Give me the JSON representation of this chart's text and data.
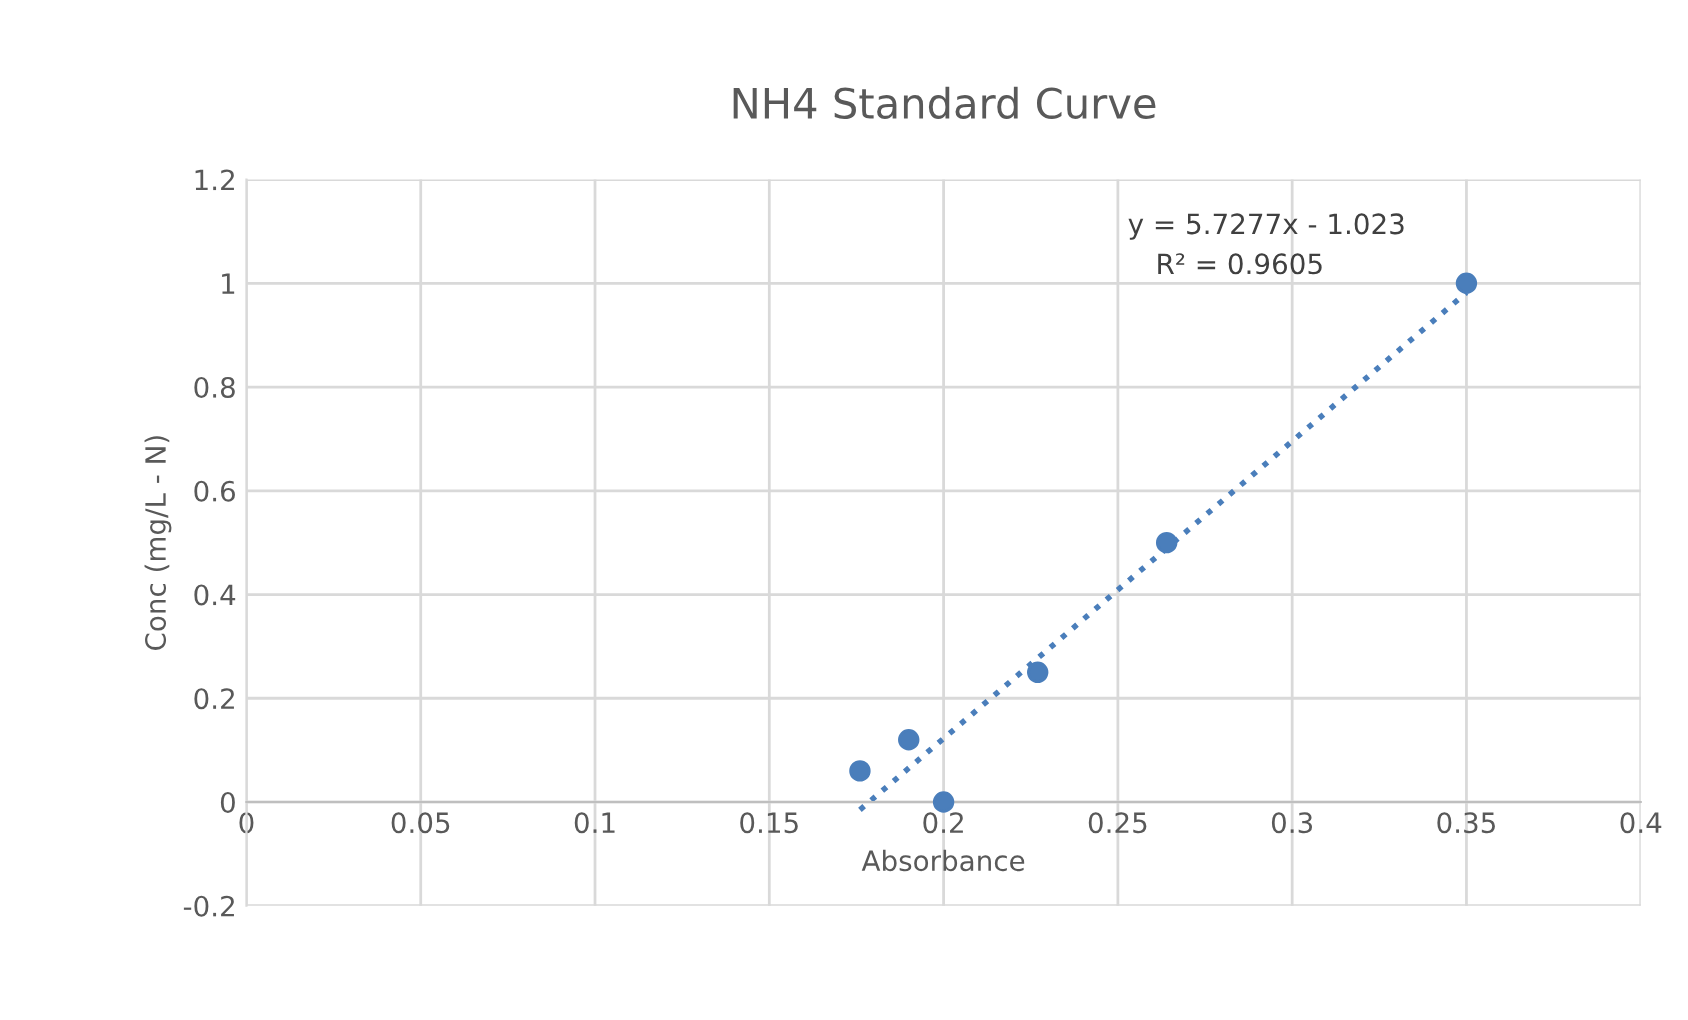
{
  "chart_data": {
    "type": "scatter",
    "title": "NH4 Standard Curve",
    "xlabel": "Absorbance",
    "ylabel": "Conc (mg/L - N)",
    "x": [
      0.176,
      0.19,
      0.2,
      0.227,
      0.264,
      0.35
    ],
    "series": [
      {
        "color": "#4a7ebb",
        "values": [
          0.06,
          0.12,
          0,
          0.25,
          0.5,
          1.0
        ],
        "marker": "circle"
      },
      {
        "type": "line",
        "color": "#4a7ebb",
        "x": [
          0.176,
          0.35
        ],
        "values": [
          -0.015,
          0.982
        ],
        "line_style": "dotted",
        "marker": "none"
      }
    ],
    "annotations": [
      "y = 5.7277x - 1.023",
      "R² = 0.9605"
    ],
    "xlim": [
      0,
      0.4
    ],
    "xticks": [
      0,
      0.05,
      0.1,
      0.15,
      0.2,
      0.25,
      0.3,
      0.35,
      0.4
    ],
    "ylim": [
      -0.2,
      1.2
    ],
    "yticks": [
      -0.2,
      0,
      0.2,
      0.4,
      0.6,
      0.8,
      1,
      1.2
    ],
    "grid": true,
    "legend": false
  }
}
